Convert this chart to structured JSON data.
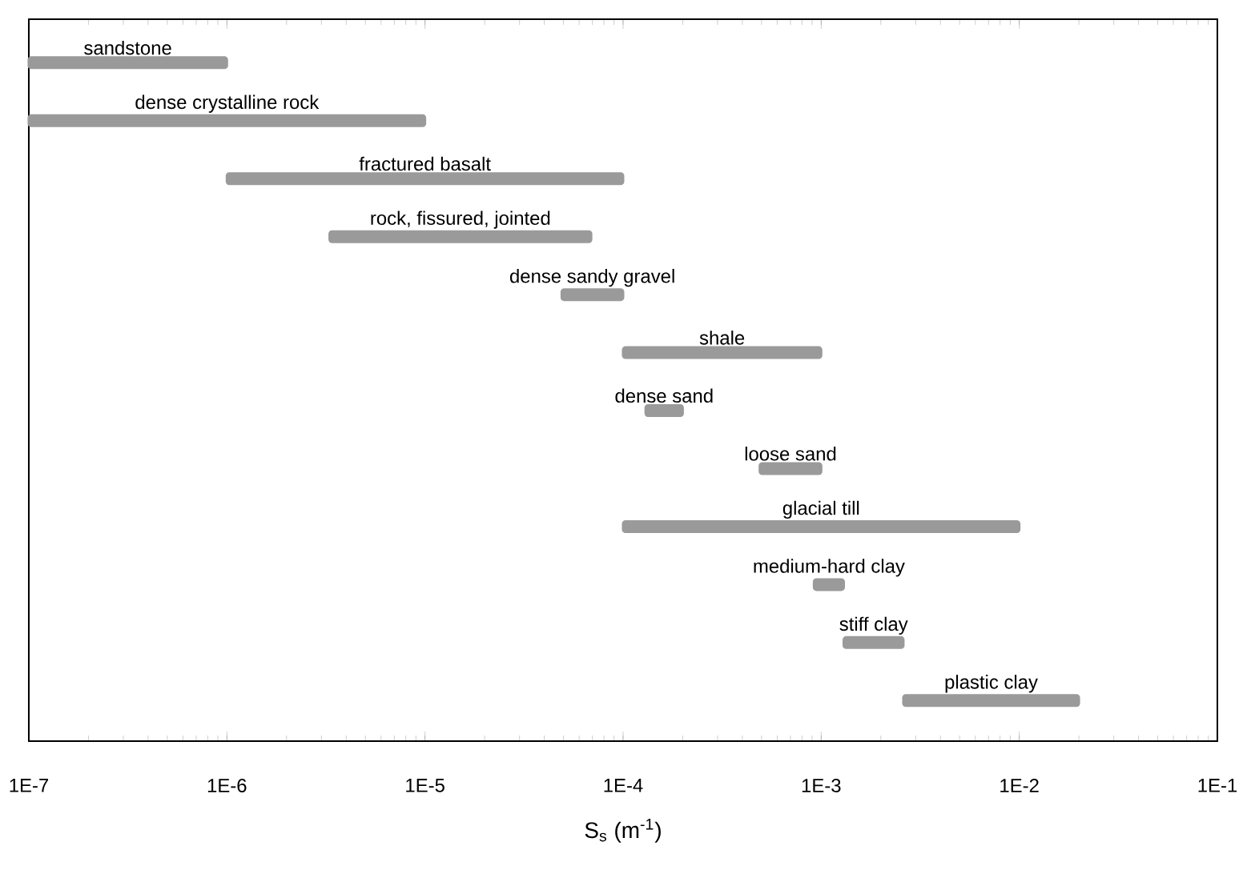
{
  "chart_data": {
    "type": "bar",
    "orientation": "horizontal",
    "log": "x",
    "tick_labels": "x",
    "xlabel": "S$_{s}$ (m$^{-1}$)",
    "categories": [
      "sandstone",
      "dense crystalline rock",
      "fractured basalt",
      "rock, fissured, jointed",
      "dense sandy gravel",
      "shale",
      "dense sand",
      "loose sand",
      "glacial till",
      "medium-hard clay",
      "stiff clay",
      "plastic clay"
    ],
    "base": [
      1e-07,
      1e-07,
      1e-06,
      3.3e-06,
      4.9e-05,
      0.0001,
      0.00013,
      0.00049,
      0.0001,
      0.00092,
      0.0013,
      0.0026
    ],
    "values": [
      9e-07,
      9.9e-06,
      9.9e-05,
      6.57e-05,
      5.1e-05,
      0.0009,
      7e-05,
      0.00051,
      0.0099,
      0.00038,
      0.0013,
      0.0174
    ],
    "color": "#9a9a9a",
    "xlim": [
      1e-07,
      0.1
    ],
    "xticks": [
      {
        "value": 1e-07,
        "label": "1E-7"
      },
      {
        "value": 1e-06,
        "label": "1E-6"
      },
      {
        "value": 1e-05,
        "label": "1E-5"
      },
      {
        "value": 0.0001,
        "label": "1E-4"
      },
      {
        "value": 0.001,
        "label": "1E-3"
      },
      {
        "value": 0.01,
        "label": "1E-2"
      },
      {
        "value": 0.1,
        "label": "1E-1"
      }
    ]
  }
}
